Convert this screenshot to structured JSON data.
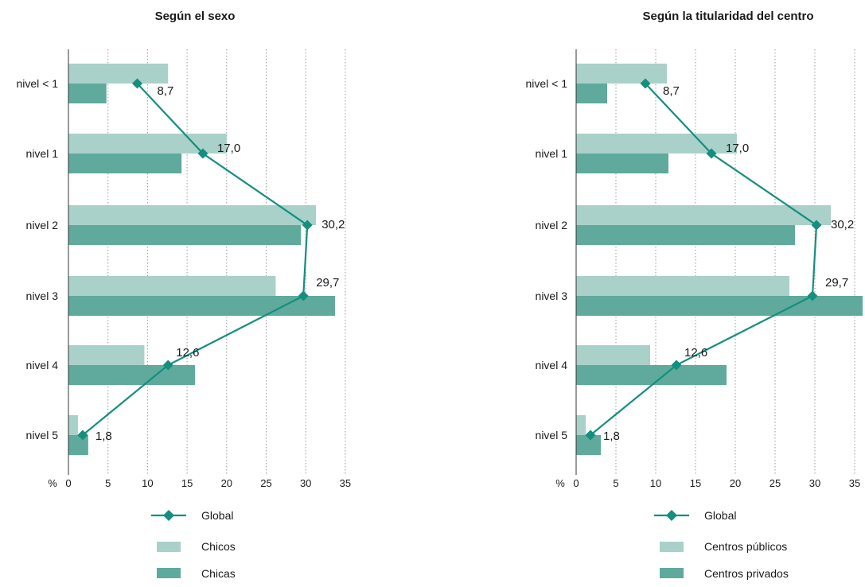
{
  "colors": {
    "light_bar": "#a9d1c9",
    "dark_bar": "#5faa9c",
    "global_line": "#138f7f",
    "grid": "#9a9a9a"
  },
  "chart_data": [
    {
      "type": "bar",
      "orientation": "horizontal",
      "title": "Según el sexo",
      "xlabel": "%",
      "xlim": [
        0,
        35
      ],
      "xticks": [
        0,
        5,
        10,
        15,
        20,
        25,
        30,
        35
      ],
      "grid": true,
      "legend_position": "bottom",
      "categories": [
        "nivel < 1",
        "nivel 1",
        "nivel 2",
        "nivel 3",
        "nivel 4",
        "nivel 5"
      ],
      "series": [
        {
          "name": "Chicos",
          "kind": "bar",
          "values": [
            12.6,
            20.0,
            31.3,
            26.2,
            9.6,
            1.2
          ]
        },
        {
          "name": "Chicas",
          "kind": "bar",
          "values": [
            4.8,
            14.3,
            29.4,
            33.7,
            16.0,
            2.5
          ]
        },
        {
          "name": "Global",
          "kind": "line",
          "values": [
            8.7,
            17.0,
            30.2,
            29.7,
            12.6,
            1.8
          ],
          "labels": [
            "8,7",
            "17,0",
            "30,2",
            "29,7",
            "12,6",
            "1,8"
          ]
        }
      ]
    },
    {
      "type": "bar",
      "orientation": "horizontal",
      "title": "Según la titularidad del centro",
      "xlabel": "%",
      "xlim": [
        0,
        35
      ],
      "xticks": [
        0,
        5,
        10,
        15,
        20,
        25,
        30,
        35
      ],
      "grid": true,
      "legend_position": "bottom",
      "categories": [
        "nivel < 1",
        "nivel 1",
        "nivel 2",
        "nivel 3",
        "nivel 4",
        "nivel 5"
      ],
      "series": [
        {
          "name": "Centros públicos",
          "kind": "bar",
          "values": [
            11.4,
            20.2,
            32.0,
            26.8,
            9.3,
            1.2
          ]
        },
        {
          "name": "Centros privados",
          "kind": "bar",
          "values": [
            3.9,
            11.6,
            27.5,
            36.0,
            18.9,
            3.1
          ]
        },
        {
          "name": "Global",
          "kind": "line",
          "values": [
            8.7,
            17.0,
            30.2,
            29.7,
            12.6,
            1.8
          ],
          "labels": [
            "8,7",
            "17,0",
            "30,2",
            "29,7",
            "12,6",
            "1,8"
          ]
        }
      ]
    }
  ]
}
